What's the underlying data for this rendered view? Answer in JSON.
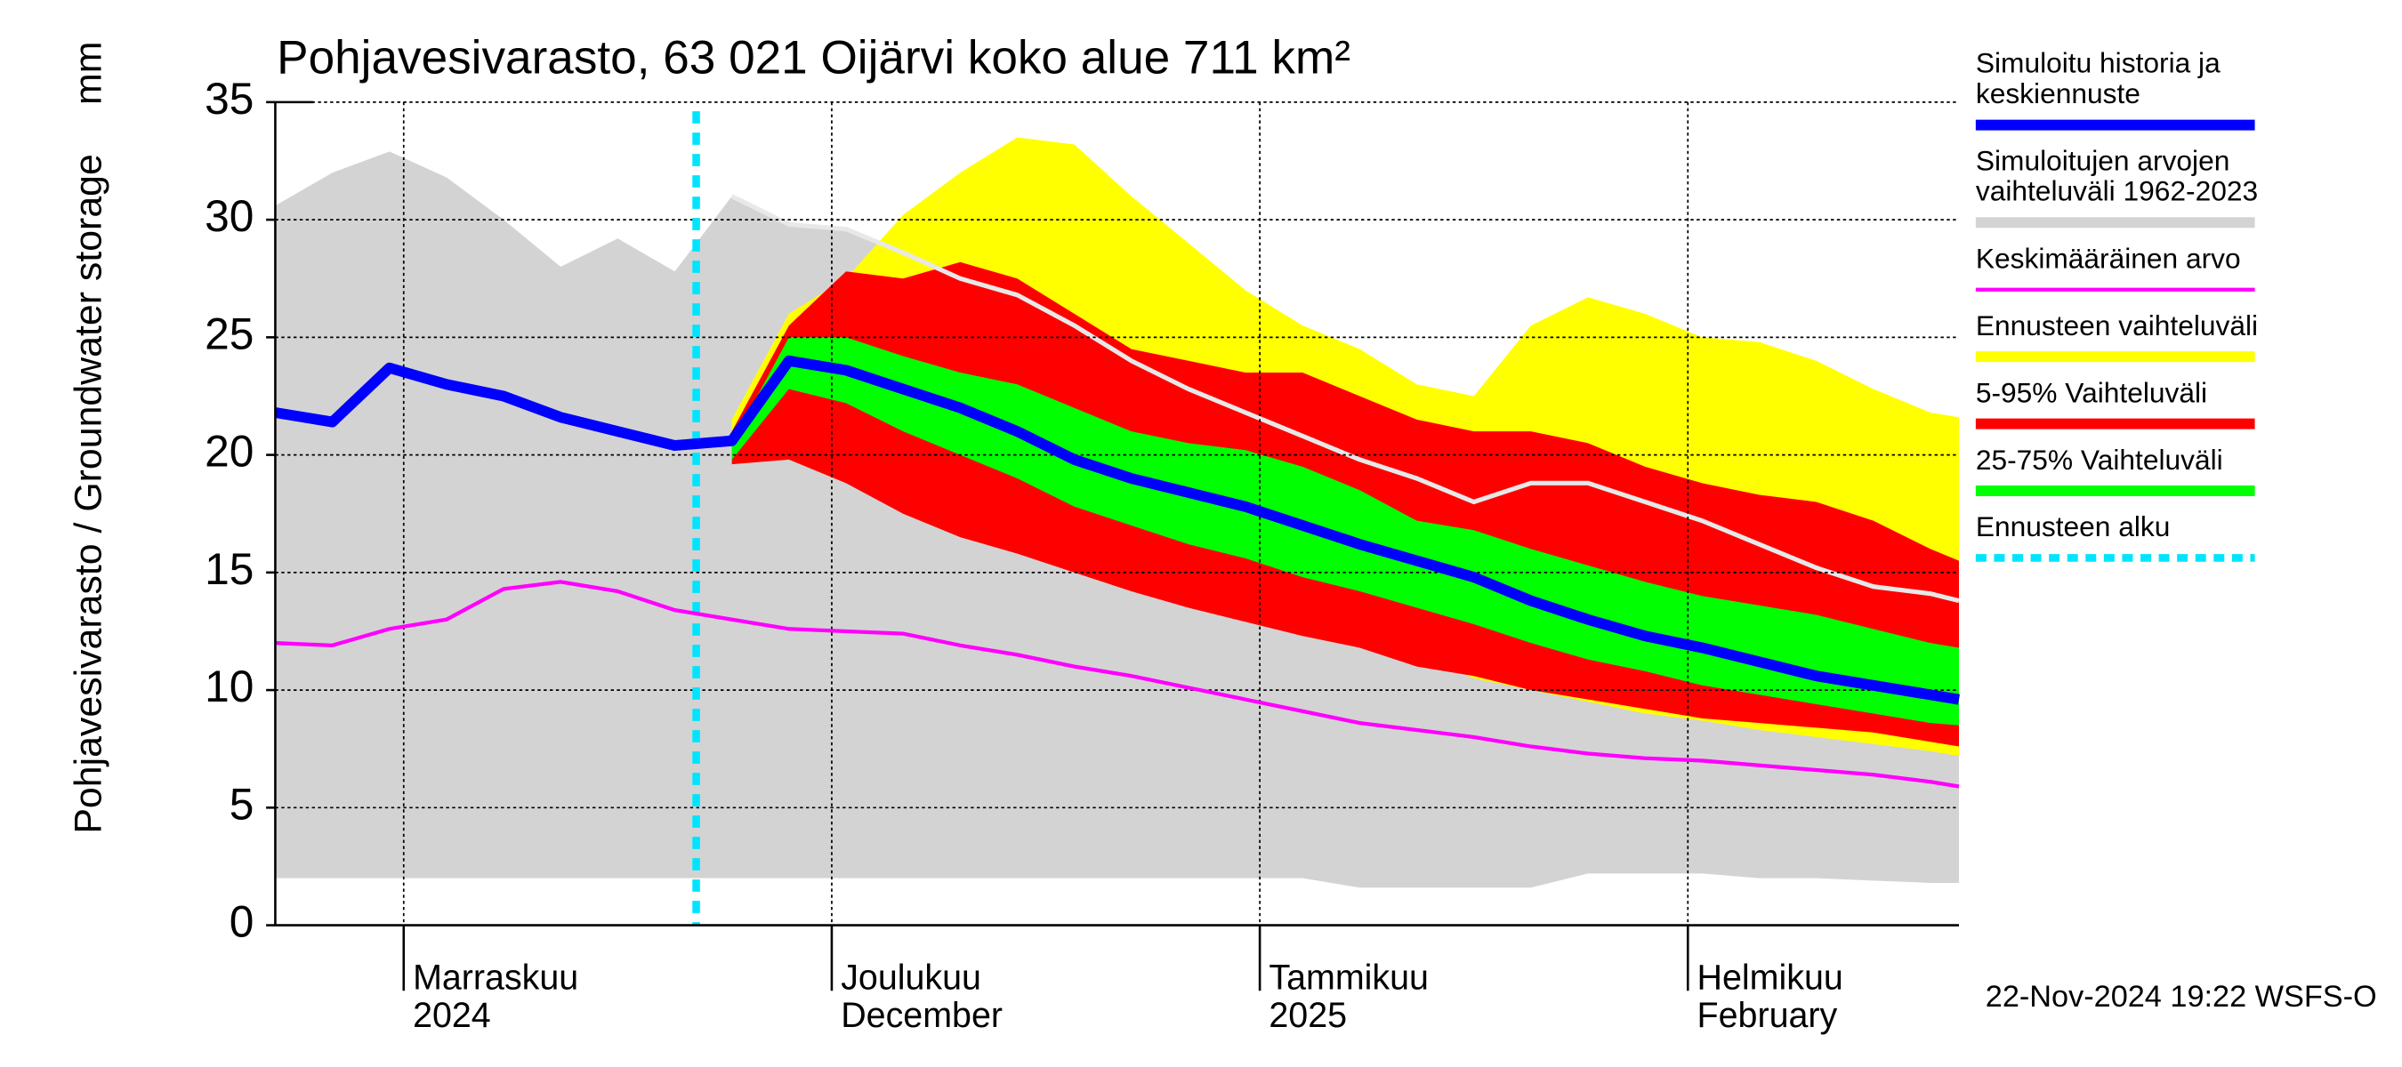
{
  "chart_data": {
    "type": "range-line",
    "title": "Pohjavesivarasto, 63 021 Oijärvi koko alue 711 km²",
    "ylabel": "Pohjavesivarasto / Groundwater storage",
    "yunit": "mm",
    "footer": "22-Nov-2024 19:22 WSFS-O",
    "x": [
      0,
      4,
      8,
      12,
      16,
      20,
      24,
      28,
      32,
      36,
      40,
      44,
      48,
      52,
      56,
      60,
      64,
      68,
      72,
      76,
      80,
      84,
      88,
      92,
      96,
      100,
      104,
      108,
      112,
      116,
      118
    ],
    "xlim": [
      0,
      118
    ],
    "xticks": [
      {
        "value": 9,
        "label": "Marraskuu\n2024"
      },
      {
        "value": 39,
        "label": "Joulukuu\nDecember"
      },
      {
        "value": 69,
        "label": "Tammikuu\n2025"
      },
      {
        "value": 99,
        "label": "Helmikuu\nFebruary"
      }
    ],
    "ylim": [
      0,
      35
    ],
    "yticks": [
      0,
      5,
      10,
      15,
      20,
      25,
      30,
      35
    ],
    "grid": true,
    "legend": "right",
    "series": [
      {
        "name": "Simuloitu historia ja\nkeskiennuste",
        "kind": "line",
        "color": "#0000ff",
        "values": [
          21.8,
          21.4,
          23.7,
          23.0,
          22.5,
          21.6,
          21.0,
          20.4,
          20.6,
          24.0,
          23.6,
          22.8,
          22.0,
          21.0,
          19.8,
          19.0,
          18.4,
          17.8,
          17.0,
          16.2,
          15.5,
          14.8,
          13.8,
          13.0,
          12.3,
          11.8,
          11.2,
          10.6,
          10.2,
          9.8,
          9.6
        ]
      },
      {
        "name": "Simuloitujen arvojen\nvaihteluväli 1962-2023",
        "kind": "band",
        "color": "#d3d3d3",
        "edge_color": "#e8e8e8",
        "low": [
          2.0,
          2.0,
          2.0,
          2.0,
          2.0,
          2.0,
          2.0,
          2.0,
          2.0,
          2.0,
          2.0,
          2.0,
          2.0,
          2.0,
          2.0,
          2.0,
          2.0,
          2.0,
          2.0,
          1.6,
          1.6,
          1.6,
          1.6,
          2.2,
          2.2,
          2.2,
          2.0,
          2.0,
          1.9,
          1.8,
          1.8
        ],
        "high": [
          30.6,
          32.0,
          32.9,
          31.8,
          30.0,
          28.0,
          29.2,
          27.8,
          31.0,
          29.8,
          29.6,
          28.6,
          27.5,
          26.8,
          25.5,
          24.0,
          22.8,
          21.8,
          20.8,
          19.8,
          19.0,
          18.0,
          18.8,
          18.8,
          18.0,
          17.2,
          16.2,
          15.2,
          14.4,
          14.1,
          13.8
        ]
      },
      {
        "name": "Keskimääräinen arvo",
        "kind": "line",
        "color": "#ff00ff",
        "values": [
          12.0,
          11.9,
          12.6,
          13.0,
          14.3,
          14.6,
          14.2,
          13.4,
          13.0,
          12.6,
          12.5,
          12.4,
          11.9,
          11.5,
          11.0,
          10.6,
          10.1,
          9.6,
          9.1,
          8.6,
          8.3,
          8.0,
          7.6,
          7.3,
          7.1,
          7.0,
          6.8,
          6.6,
          6.4,
          6.1,
          5.9
        ]
      },
      {
        "name": "Ennusteen vaihteluväli",
        "kind": "band",
        "color": "#ffff00",
        "low": [
          null,
          null,
          null,
          null,
          null,
          null,
          null,
          null,
          19.8,
          19.8,
          19.0,
          17.8,
          16.8,
          16.0,
          15.2,
          14.5,
          13.8,
          13.2,
          12.6,
          12.0,
          11.5,
          10.5,
          10.0,
          9.5,
          9.0,
          8.7,
          8.3,
          8.0,
          7.7,
          7.4,
          7.2
        ],
        "high": [
          null,
          null,
          null,
          null,
          null,
          null,
          null,
          null,
          21.5,
          26.0,
          27.5,
          30.2,
          32.0,
          33.5,
          33.2,
          31.0,
          29.0,
          27.0,
          25.5,
          24.5,
          23.0,
          22.5,
          25.5,
          26.7,
          26.0,
          25.0,
          24.8,
          24.0,
          22.8,
          21.8,
          21.6
        ]
      },
      {
        "name": "5-95% Vaihteluväli",
        "kind": "band",
        "color": "#ff0000",
        "low": [
          null,
          null,
          null,
          null,
          null,
          null,
          null,
          null,
          19.6,
          19.8,
          18.8,
          17.5,
          16.5,
          15.8,
          15.0,
          14.2,
          13.5,
          12.9,
          12.3,
          11.8,
          11.0,
          10.6,
          10.0,
          9.6,
          9.2,
          8.8,
          8.6,
          8.4,
          8.2,
          7.8,
          7.6
        ],
        "high": [
          null,
          null,
          null,
          null,
          null,
          null,
          null,
          null,
          21.0,
          25.5,
          27.8,
          27.5,
          28.2,
          27.5,
          26.0,
          24.5,
          24.0,
          23.5,
          23.5,
          22.5,
          21.5,
          21.0,
          21.0,
          20.5,
          19.5,
          18.8,
          18.3,
          18.0,
          17.2,
          16.0,
          15.5
        ]
      },
      {
        "name": "25-75% Vaihteluväli",
        "kind": "band",
        "color": "#00ff00",
        "low": [
          null,
          null,
          null,
          null,
          null,
          null,
          null,
          null,
          19.8,
          22.8,
          22.2,
          21.0,
          20.0,
          19.0,
          17.8,
          17.0,
          16.2,
          15.6,
          14.8,
          14.2,
          13.5,
          12.8,
          12.0,
          11.3,
          10.8,
          10.2,
          9.8,
          9.4,
          9.0,
          8.6,
          8.5
        ],
        "high": [
          null,
          null,
          null,
          null,
          null,
          null,
          null,
          null,
          20.5,
          25.0,
          25.0,
          24.2,
          23.5,
          23.0,
          22.0,
          21.0,
          20.5,
          20.2,
          19.5,
          18.5,
          17.2,
          16.8,
          16.0,
          15.3,
          14.6,
          14.0,
          13.6,
          13.2,
          12.6,
          12.0,
          11.8
        ]
      },
      {
        "name": "Ennusteen alku",
        "kind": "vline",
        "color": "#00e5ff",
        "x": 29.5
      }
    ]
  }
}
